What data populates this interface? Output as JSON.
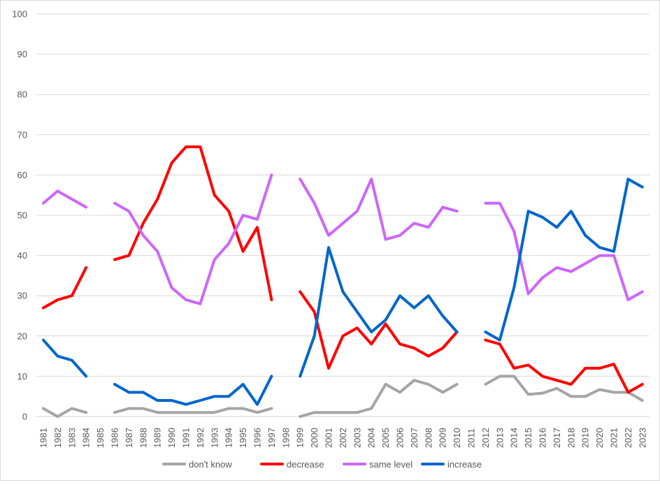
{
  "chart_data": {
    "type": "line",
    "title": "",
    "xlabel": "",
    "ylabel": "",
    "ylim": [
      0,
      100
    ],
    "yticks": [
      "0",
      "10",
      "20",
      "30",
      "40",
      "50",
      "60",
      "70",
      "80",
      "90",
      "100"
    ],
    "grid": true,
    "legend_position": "bottom",
    "x": [
      "1981",
      "1982",
      "1983",
      "1984",
      "1985",
      "1986",
      "1987",
      "1988",
      "1989",
      "1990",
      "1991",
      "1992",
      "1993",
      "1994",
      "1995",
      "1996",
      "1997",
      "1998",
      "1999",
      "2000",
      "2001",
      "2002",
      "2003",
      "2004",
      "2005",
      "2006",
      "2007",
      "2008",
      "2009",
      "2010",
      "2011",
      "2012",
      "2013",
      "2014",
      "2015",
      "2016",
      "2017",
      "2018",
      "2019",
      "2020",
      "2021",
      "2022",
      "2023"
    ],
    "series": [
      {
        "name": "don't know",
        "color": "#A5A5A5",
        "values": [
          2,
          0,
          2,
          1,
          null,
          1,
          2,
          2,
          1,
          1,
          1,
          1,
          1,
          2,
          2,
          1,
          2,
          null,
          0,
          1,
          1,
          1,
          1,
          2,
          8,
          6,
          9,
          8,
          6,
          8,
          null,
          8,
          10,
          10,
          5.5,
          5.8,
          7,
          5,
          5,
          6.7,
          6,
          6,
          4
        ]
      },
      {
        "name": "decrease",
        "color": "#FF0000",
        "values": [
          27,
          29,
          30,
          37,
          null,
          39,
          40,
          48,
          54,
          63,
          67,
          67,
          55,
          51,
          41,
          47,
          29,
          null,
          31,
          26,
          12,
          20,
          22,
          18,
          23,
          18,
          17,
          15,
          17,
          21,
          null,
          19,
          18,
          12,
          12.8,
          10,
          9,
          8,
          12,
          12,
          13,
          6,
          8
        ]
      },
      {
        "name": "same level",
        "color": "#CC66FF",
        "values": [
          53,
          56,
          54,
          52,
          null,
          53,
          51,
          45,
          41,
          32,
          29,
          28,
          39,
          43,
          50,
          49,
          60,
          null,
          59,
          53,
          45,
          48,
          51,
          59,
          44,
          45,
          48,
          47,
          52,
          51,
          null,
          53,
          53,
          46,
          30.5,
          34.5,
          37,
          36,
          38,
          40,
          40,
          29,
          31
        ]
      },
      {
        "name": "increase",
        "color": "#0066CC",
        "values": [
          19,
          15,
          14,
          10,
          null,
          8,
          6,
          6,
          4,
          4,
          3,
          4,
          5,
          5,
          8,
          3,
          10,
          null,
          10,
          20,
          42,
          31,
          26,
          21,
          24,
          30,
          27,
          30,
          25,
          21,
          null,
          21,
          19,
          32,
          51,
          49.5,
          47,
          51,
          45,
          42,
          41,
          59,
          57
        ]
      }
    ]
  }
}
